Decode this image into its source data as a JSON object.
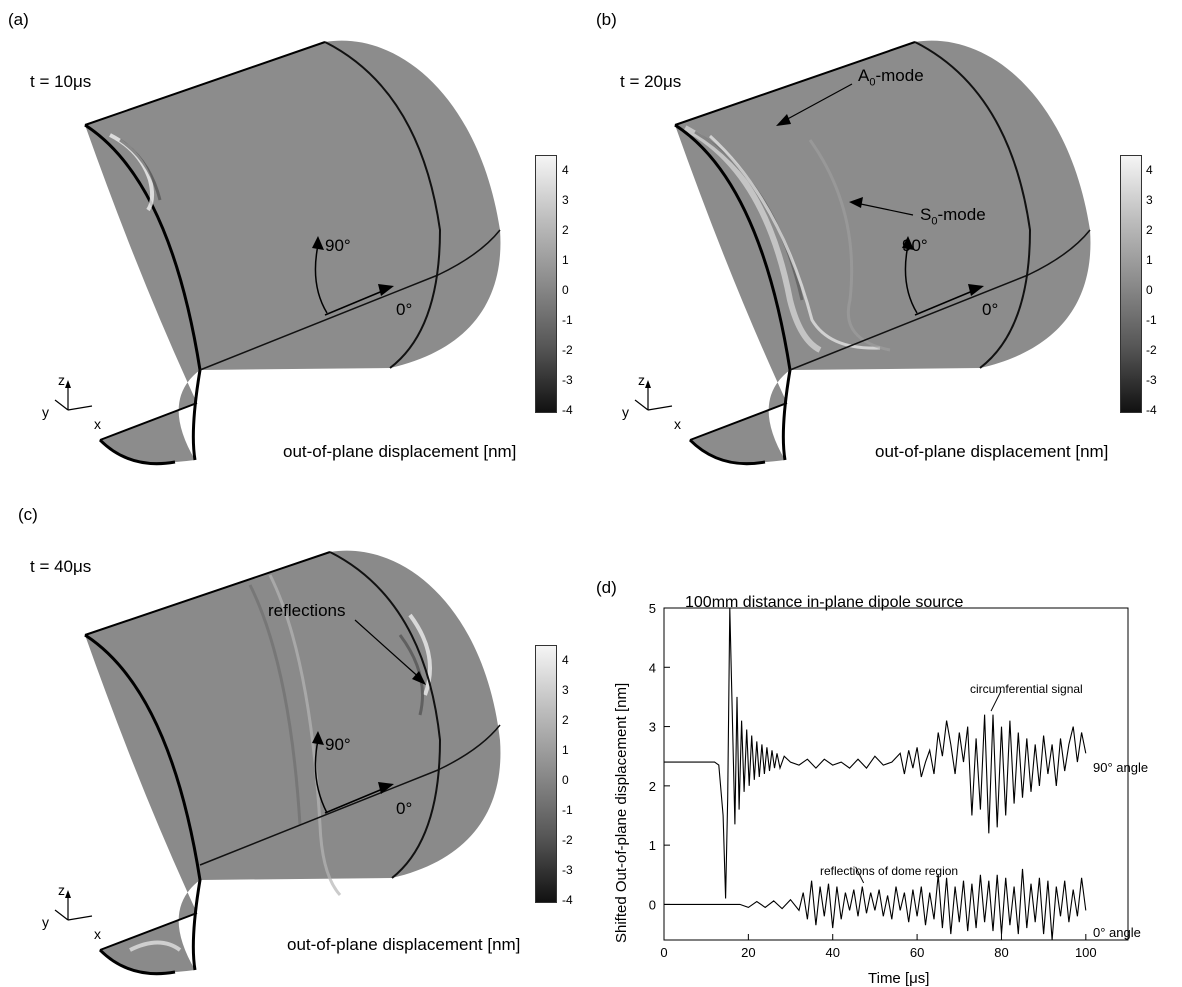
{
  "panels": {
    "a": {
      "label": "(a)",
      "time": "t = 10μs",
      "angle_90": "90°",
      "angle_0": "0°"
    },
    "b": {
      "label": "(b)",
      "time": "t = 20μs",
      "angle_90": "90°",
      "angle_0": "0°",
      "mode_a": "A",
      "mode_a_sub": "0",
      "mode_a_suffix": "-mode",
      "mode_s": "S",
      "mode_s_sub": "0",
      "mode_s_suffix": "-mode"
    },
    "c": {
      "label": "(c)",
      "time": "t = 40μs",
      "angle_90": "90°",
      "angle_0": "0°",
      "reflections": "reflections"
    },
    "d": {
      "label": "(d)"
    }
  },
  "axes_triad": {
    "z": "z",
    "y": "y",
    "x": "x"
  },
  "colorbar": {
    "title": "out-of-plane displacement [nm]",
    "ticks": [
      "4",
      "3",
      "2",
      "1",
      "0",
      "-1",
      "-2",
      "-3",
      "-4"
    ],
    "colors": {
      "low": "#111111",
      "mid": "#8a8a8a",
      "high": "#f5f5f5"
    }
  },
  "shell_color": "#8c8c8c",
  "chart_data": {
    "type": "line",
    "title": "100mm distance in-plane dipole source",
    "xlabel": "Time [μs]",
    "ylabel": "Shifted Out-of-plane displacement [nm]",
    "xlim": [
      0,
      110
    ],
    "ylim": [
      -0.6,
      5
    ],
    "xticks": [
      0,
      20,
      40,
      60,
      80,
      100
    ],
    "yticks": [
      0,
      1,
      2,
      3,
      4,
      5
    ],
    "grid": false,
    "series": [
      {
        "name": "90° angle",
        "baseline": 2.4,
        "x": [
          0,
          12,
          13,
          14,
          14.6,
          15.1,
          15.6,
          16.2,
          16.8,
          17.3,
          17.8,
          18.4,
          19,
          19.6,
          20.2,
          20.8,
          21.4,
          22,
          22.6,
          23.2,
          23.8,
          24.4,
          25,
          25.6,
          26.2,
          26.8,
          27.5,
          28.5,
          30,
          32,
          34,
          36,
          38,
          40,
          42,
          44,
          46,
          48,
          50,
          52,
          54,
          56,
          57,
          58,
          59,
          60,
          61,
          62,
          63,
          64,
          65,
          66,
          67,
          68,
          69,
          70,
          71,
          72,
          73,
          74,
          75,
          76,
          77,
          78,
          79,
          80,
          81,
          82,
          83,
          84,
          85,
          86,
          87,
          88,
          89,
          90,
          91,
          92,
          93,
          94,
          95,
          96,
          97,
          98,
          99,
          100
        ],
        "y": [
          2.4,
          2.4,
          2.35,
          1.5,
          0.1,
          1.8,
          5.0,
          3.2,
          1.35,
          3.5,
          1.6,
          3.1,
          1.9,
          2.95,
          2.0,
          2.85,
          2.1,
          2.75,
          2.15,
          2.7,
          2.2,
          2.65,
          2.25,
          2.6,
          2.3,
          2.55,
          2.3,
          2.5,
          2.4,
          2.35,
          2.45,
          2.3,
          2.45,
          2.35,
          2.4,
          2.3,
          2.45,
          2.3,
          2.5,
          2.35,
          2.4,
          2.55,
          2.2,
          2.6,
          2.3,
          2.65,
          2.15,
          2.4,
          2.6,
          2.2,
          2.9,
          2.5,
          3.1,
          2.7,
          2.2,
          2.9,
          2.4,
          3.0,
          1.5,
          2.8,
          1.6,
          3.2,
          1.2,
          3.2,
          1.3,
          3.0,
          1.5,
          3.1,
          1.7,
          2.9,
          1.8,
          2.8,
          1.9,
          2.7,
          2.0,
          2.85,
          2.2,
          2.7,
          2.0,
          2.8,
          2.25,
          2.7,
          3.0,
          2.4,
          2.9,
          2.55
        ]
      },
      {
        "name": "0° angle",
        "baseline": 0,
        "x": [
          0,
          18,
          20,
          22,
          24,
          26,
          28,
          30,
          32,
          33,
          34,
          35,
          36,
          37,
          38,
          39,
          40,
          41,
          42,
          43,
          44,
          45,
          46,
          47,
          48,
          49,
          50,
          51,
          52,
          53,
          54,
          55,
          56,
          57,
          58,
          59,
          60,
          61,
          62,
          63,
          64,
          65,
          66,
          67,
          68,
          69,
          70,
          71,
          72,
          73,
          74,
          75,
          76,
          77,
          78,
          79,
          80,
          81,
          82,
          83,
          84,
          85,
          86,
          87,
          88,
          89,
          90,
          91,
          92,
          93,
          94,
          95,
          96,
          97,
          98,
          99,
          100
        ],
        "y": [
          0,
          0,
          -0.05,
          0.05,
          -0.05,
          0.06,
          -0.07,
          0.08,
          -0.1,
          0.2,
          -0.25,
          0.4,
          -0.35,
          0.3,
          -0.2,
          0.35,
          -0.4,
          0.3,
          -0.25,
          0.2,
          -0.1,
          0.25,
          -0.2,
          0.3,
          -0.15,
          0.2,
          -0.1,
          0.25,
          -0.2,
          0.15,
          -0.25,
          0.3,
          -0.1,
          0.2,
          -0.3,
          0.25,
          -0.2,
          0.3,
          -0.35,
          0.2,
          -0.25,
          0.5,
          -0.4,
          0.45,
          -0.5,
          0.3,
          -0.3,
          0.4,
          -0.45,
          0.35,
          -0.4,
          0.5,
          -0.3,
          0.4,
          -0.45,
          0.5,
          -0.5,
          0.45,
          -0.35,
          0.3,
          -0.5,
          0.6,
          -0.4,
          0.35,
          -0.3,
          0.45,
          -0.5,
          0.4,
          -0.6,
          0.3,
          -0.2,
          0.4,
          -0.3,
          0.25,
          -0.2,
          0.45,
          -0.1
        ]
      }
    ],
    "annotations": [
      {
        "text": "circumferential signal",
        "x": 78,
        "y": 3.7
      },
      {
        "text": "reflections of dome region",
        "x": 44,
        "y": 0.7
      }
    ],
    "series_labels": {
      "s90": "90° angle",
      "s0": "0° angle"
    }
  }
}
